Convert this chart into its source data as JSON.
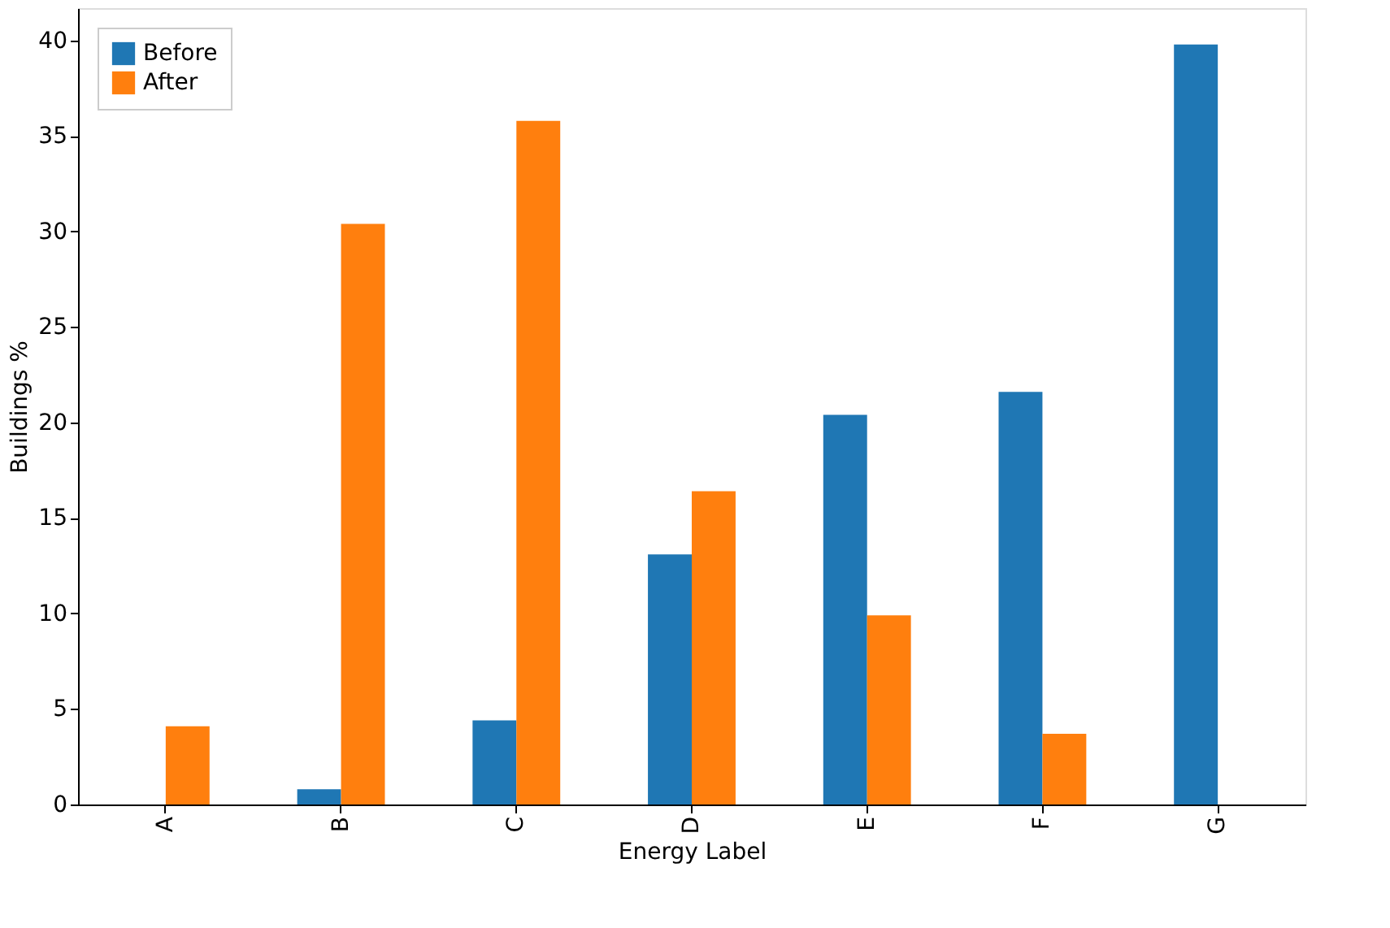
{
  "chart_data": {
    "type": "bar",
    "xlabel": "Energy Label",
    "ylabel": "Buildings %",
    "categories": [
      "A",
      "B",
      "C",
      "D",
      "E",
      "F",
      "G"
    ],
    "series": [
      {
        "name": "Before",
        "color": "#1f77b4",
        "values": [
          0,
          0.8,
          4.4,
          13.1,
          20.4,
          21.6,
          39.8
        ]
      },
      {
        "name": "After",
        "color": "#ff7f0e",
        "values": [
          4.1,
          30.4,
          35.8,
          16.4,
          9.9,
          3.7,
          0
        ]
      }
    ],
    "ylim": [
      0,
      41.7
    ],
    "yticks": [
      0,
      5,
      10,
      15,
      20,
      25,
      30,
      35,
      40
    ],
    "grid": false,
    "legend": "top left"
  }
}
